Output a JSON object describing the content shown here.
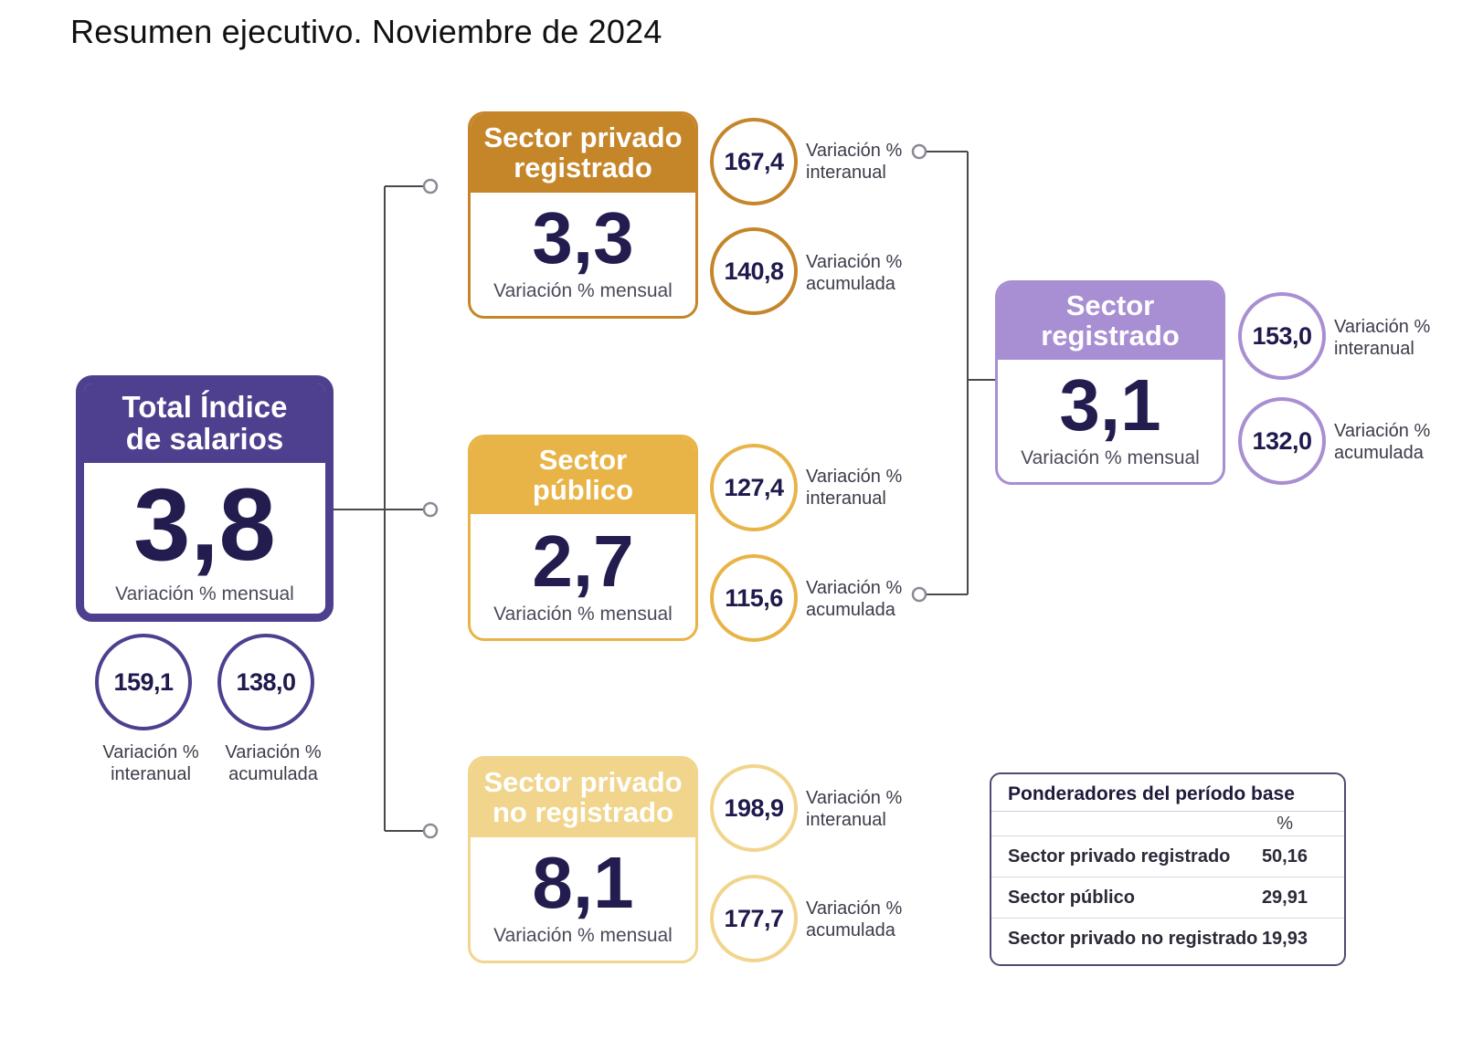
{
  "title": "Resumen ejecutivo. Noviembre de 2024",
  "colors": {
    "total": "#4f3f8f",
    "privado_registrado": "#c5862a",
    "publico": "#e8b447",
    "no_registrado": "#f1d58c",
    "registrado": "#a88ed2",
    "connector": "#4a4a4a"
  },
  "total": {
    "header": "Total Índice de salarios",
    "value": "3,8",
    "sublabel": "Variación % mensual",
    "interanual": "159,1",
    "interanual_label": "Variación % interanual",
    "acumulada": "138,0",
    "acumulada_label": "Variación % acumulada"
  },
  "privado_registrado": {
    "header": "Sector privado registrado",
    "value": "3,3",
    "sublabel": "Variación % mensual",
    "interanual": "167,4",
    "interanual_label": "Variación % interanual",
    "acumulada": "140,8",
    "acumulada_label": "Variación % acumulada"
  },
  "publico": {
    "header": "Sector público",
    "value": "2,7",
    "sublabel": "Variación % mensual",
    "interanual": "127,4",
    "interanual_label": "Variación % interanual",
    "acumulada": "115,6",
    "acumulada_label": "Variación % acumulada"
  },
  "no_registrado": {
    "header": "Sector privado no registrado",
    "value": "8,1",
    "sublabel": "Variación % mensual",
    "interanual": "198,9",
    "interanual_label": "Variación % interanual",
    "acumulada": "177,7",
    "acumulada_label": "Variación % acumulada"
  },
  "registrado": {
    "header": "Sector registrado",
    "value": "3,1",
    "sublabel": "Variación % mensual",
    "interanual": "153,0",
    "interanual_label": "Variación % interanual",
    "acumulada": "132,0",
    "acumulada_label": "Variación % acumulada"
  },
  "ponderadores": {
    "title": "Ponderadores del período base",
    "unit": "%",
    "rows": [
      {
        "label": "Sector privado registrado",
        "value": "50,16"
      },
      {
        "label": "Sector público",
        "value": "29,91"
      },
      {
        "label": "Sector privado no registrado",
        "value": "19,93"
      }
    ]
  }
}
